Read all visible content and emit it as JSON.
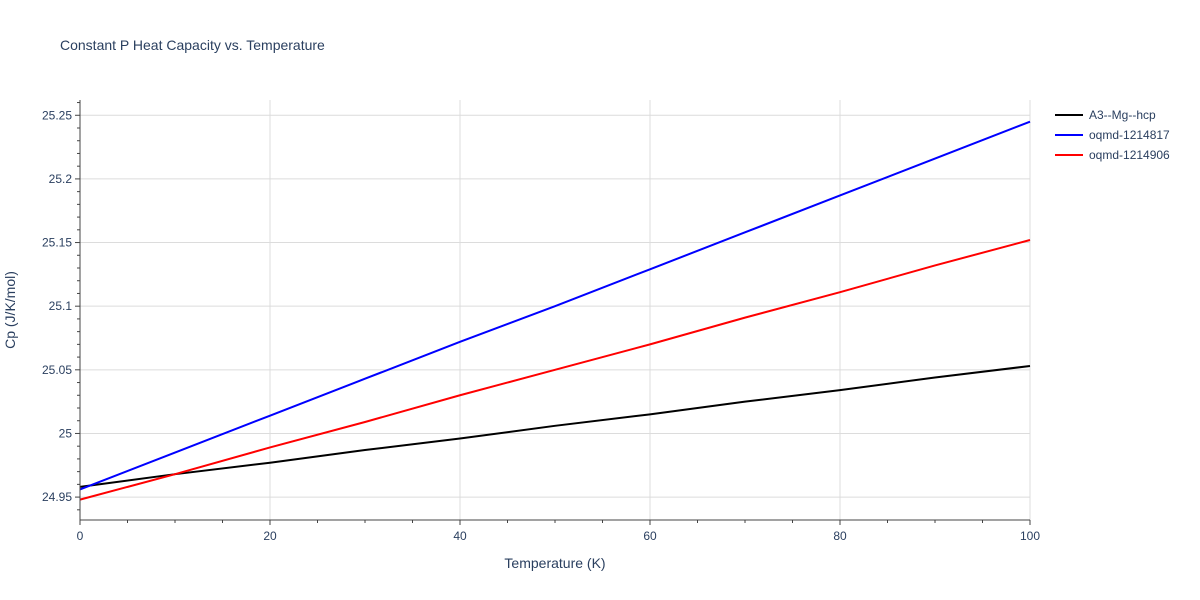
{
  "chart_data": {
    "type": "line",
    "title": "Constant P Heat Capacity vs. Temperature",
    "xlabel": "Temperature (K)",
    "ylabel": "Cp (J/K/mol)",
    "xlim": [
      0,
      100
    ],
    "ylim": [
      24.932,
      25.262
    ],
    "x_ticks": [
      0,
      20,
      40,
      60,
      80,
      100
    ],
    "y_ticks": [
      24.95,
      25,
      25.05,
      25.1,
      25.15,
      25.2,
      25.25
    ],
    "y_tick_labels": [
      "24.95",
      "25",
      "25.05",
      "25.1",
      "25.15",
      "25.2",
      "25.25"
    ],
    "grid": true,
    "legend_position": "right",
    "series": [
      {
        "name": "A3--Mg--hcp",
        "color": "#000000",
        "x": [
          0,
          10,
          20,
          30,
          40,
          50,
          60,
          70,
          80,
          90,
          100
        ],
        "y": [
          24.958,
          24.968,
          24.977,
          24.987,
          24.996,
          25.006,
          25.015,
          25.025,
          25.034,
          25.044,
          25.053
        ]
      },
      {
        "name": "oqmd-1214817",
        "color": "#0000ff",
        "x": [
          0,
          10,
          20,
          30,
          40,
          50,
          60,
          70,
          80,
          90,
          100
        ],
        "y": [
          24.956,
          24.985,
          25.014,
          25.043,
          25.072,
          25.1,
          25.129,
          25.158,
          25.187,
          25.216,
          25.245
        ]
      },
      {
        "name": "oqmd-1214906",
        "color": "#ff0000",
        "x": [
          0,
          10,
          20,
          30,
          40,
          50,
          60,
          70,
          80,
          90,
          100
        ],
        "y": [
          24.948,
          24.968,
          24.989,
          25.009,
          25.03,
          25.05,
          25.07,
          25.091,
          25.111,
          25.132,
          25.152
        ]
      }
    ]
  }
}
